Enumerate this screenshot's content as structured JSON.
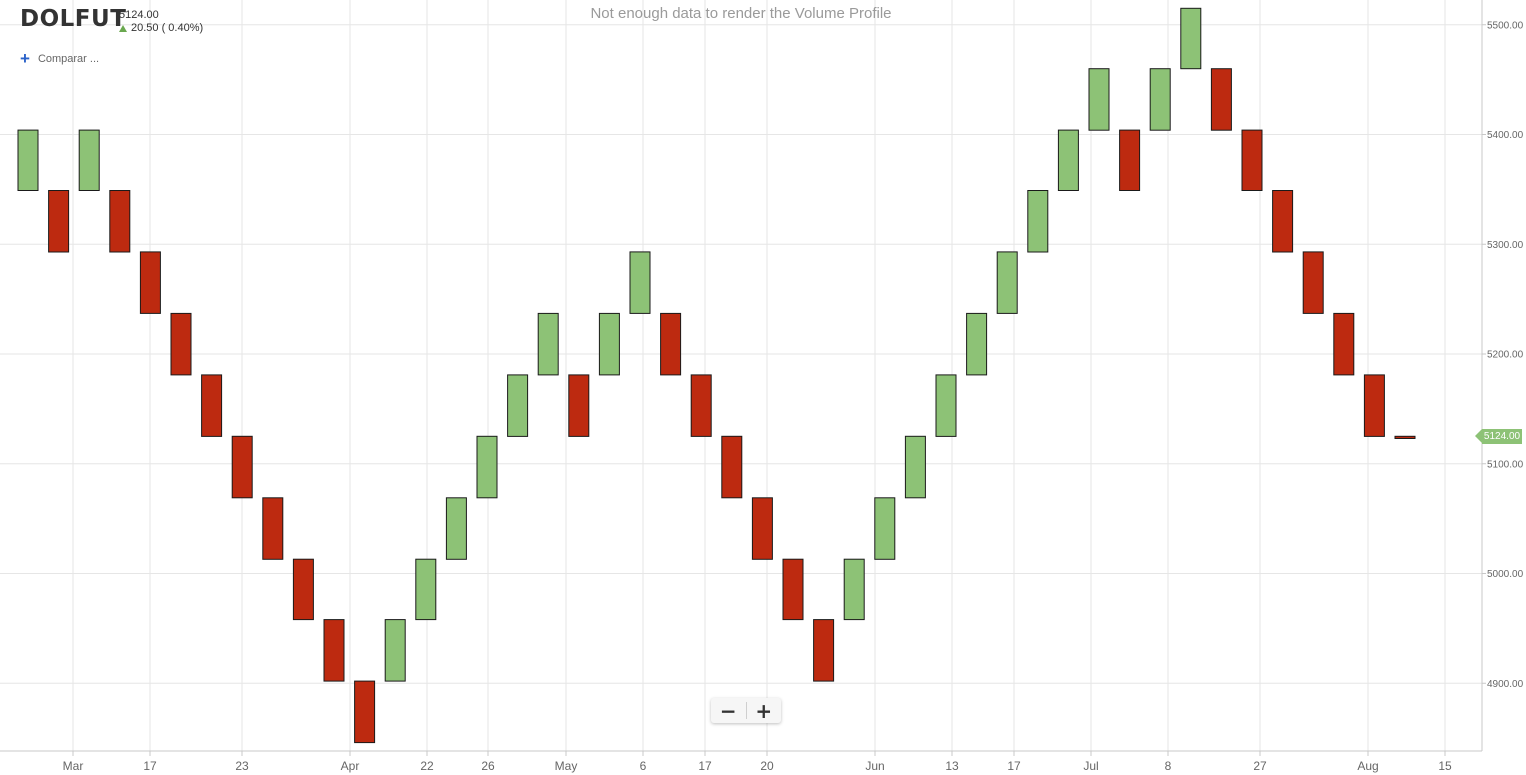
{
  "header": {
    "symbol": "DOLFUT",
    "price": "5124.00",
    "change": "20.50 ( 0.40%)",
    "compare_label": "Comparar ..."
  },
  "volume_profile_message": "Not enough data to render the Volume Profile",
  "last_price_tag": "5124.00",
  "zoom": {
    "minus": "−",
    "plus": "+"
  },
  "colors": {
    "up": "#8dc276",
    "down": "#bd2a10",
    "grid": "#e6e6e6",
    "axis_text": "#666666",
    "compare_plus": "#2a62c9"
  },
  "chart_data": {
    "type": "renko",
    "title": "",
    "xlabel": "",
    "ylabel": "",
    "ylim": [
      4842,
      5520
    ],
    "y_ticks": [
      "4900.00",
      "5000.00",
      "5100.00",
      "5200.00",
      "5300.00",
      "5400.00",
      "5500.00"
    ],
    "x_tick_labels": [
      "Mar",
      "17",
      "23",
      "Apr",
      "22",
      "26",
      "May",
      "6",
      "17",
      "20",
      "Jun",
      "13",
      "17",
      "Jul",
      "8",
      "27",
      "Aug",
      "15"
    ],
    "box_size": 56,
    "bricks": [
      {
        "dir": "up",
        "low": 5349,
        "high": 5404
      },
      {
        "dir": "down",
        "low": 5293,
        "high": 5349
      },
      {
        "dir": "up",
        "low": 5349,
        "high": 5404
      },
      {
        "dir": "down",
        "low": 5293,
        "high": 5349
      },
      {
        "dir": "down",
        "low": 5237,
        "high": 5293
      },
      {
        "dir": "down",
        "low": 5181,
        "high": 5237
      },
      {
        "dir": "down",
        "low": 5125,
        "high": 5181
      },
      {
        "dir": "down",
        "low": 5069,
        "high": 5125
      },
      {
        "dir": "down",
        "low": 5013,
        "high": 5069
      },
      {
        "dir": "down",
        "low": 4958,
        "high": 5013
      },
      {
        "dir": "down",
        "low": 4902,
        "high": 4958
      },
      {
        "dir": "down",
        "low": 4846,
        "high": 4902
      },
      {
        "dir": "up",
        "low": 4902,
        "high": 4958
      },
      {
        "dir": "up",
        "low": 4958,
        "high": 5013
      },
      {
        "dir": "up",
        "low": 5013,
        "high": 5069
      },
      {
        "dir": "up",
        "low": 5069,
        "high": 5125
      },
      {
        "dir": "up",
        "low": 5125,
        "high": 5181
      },
      {
        "dir": "up",
        "low": 5181,
        "high": 5237
      },
      {
        "dir": "down",
        "low": 5125,
        "high": 5181
      },
      {
        "dir": "up",
        "low": 5181,
        "high": 5237
      },
      {
        "dir": "up",
        "low": 5237,
        "high": 5293
      },
      {
        "dir": "down",
        "low": 5181,
        "high": 5237
      },
      {
        "dir": "down",
        "low": 5125,
        "high": 5181
      },
      {
        "dir": "down",
        "low": 5069,
        "high": 5125
      },
      {
        "dir": "down",
        "low": 5013,
        "high": 5069
      },
      {
        "dir": "down",
        "low": 4958,
        "high": 5013
      },
      {
        "dir": "down",
        "low": 4902,
        "high": 4958
      },
      {
        "dir": "up",
        "low": 4958,
        "high": 5013
      },
      {
        "dir": "up",
        "low": 5013,
        "high": 5069
      },
      {
        "dir": "up",
        "low": 5069,
        "high": 5125
      },
      {
        "dir": "up",
        "low": 5125,
        "high": 5181
      },
      {
        "dir": "up",
        "low": 5181,
        "high": 5237
      },
      {
        "dir": "up",
        "low": 5237,
        "high": 5293
      },
      {
        "dir": "up",
        "low": 5293,
        "high": 5349
      },
      {
        "dir": "up",
        "low": 5349,
        "high": 5404
      },
      {
        "dir": "up",
        "low": 5404,
        "high": 5460
      },
      {
        "dir": "down",
        "low": 5349,
        "high": 5404
      },
      {
        "dir": "up",
        "low": 5404,
        "high": 5460
      },
      {
        "dir": "up",
        "low": 5460,
        "high": 5515
      },
      {
        "dir": "down",
        "low": 5404,
        "high": 5460
      },
      {
        "dir": "down",
        "low": 5349,
        "high": 5404
      },
      {
        "dir": "down",
        "low": 5293,
        "high": 5349
      },
      {
        "dir": "down",
        "low": 5237,
        "high": 5293
      },
      {
        "dir": "down",
        "low": 5181,
        "high": 5237
      },
      {
        "dir": "down",
        "low": 5125,
        "high": 5181
      },
      {
        "dir": "down",
        "low": 5123,
        "high": 5125
      }
    ],
    "last_price": 5124.0,
    "grid": true
  }
}
